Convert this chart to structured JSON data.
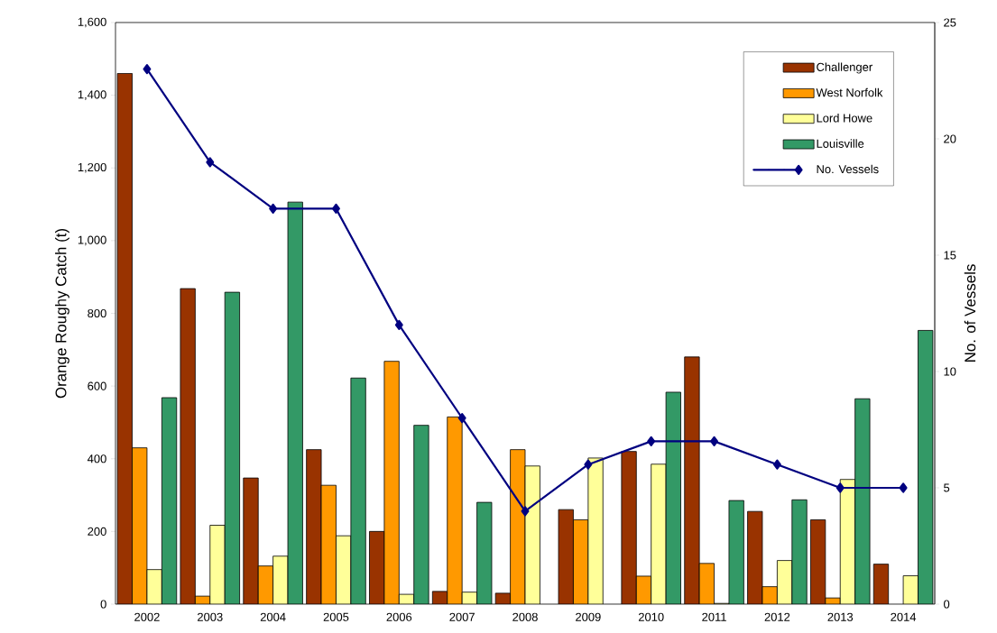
{
  "chart_data": {
    "type": "bar",
    "ylabel": "Orange Roughy Catch (t)",
    "y2label": "No. of Vessels",
    "categories": [
      "2002",
      "2003",
      "2004",
      "2005",
      "2006",
      "2007",
      "2008",
      "2009",
      "2010",
      "2011",
      "2012",
      "2013",
      "2014"
    ],
    "series": [
      {
        "name": "Challenger",
        "color": "#993300",
        "values": [
          1460,
          868,
          347,
          425,
          200,
          35,
          30,
          260,
          420,
          680,
          255,
          232,
          110
        ]
      },
      {
        "name": "West Norfolk",
        "color": "#ff9900",
        "values": [
          430,
          22,
          105,
          327,
          668,
          515,
          425,
          232,
          77,
          112,
          48,
          17,
          null
        ]
      },
      {
        "name": "Lord Howe",
        "color": "#ffff99",
        "values": [
          95,
          217,
          132,
          188,
          27,
          33,
          380,
          402,
          385,
          2,
          120,
          343,
          78
        ]
      },
      {
        "name": "Louisville",
        "color": "#339966",
        "values": [
          568,
          858,
          1106,
          622,
          492,
          280,
          null,
          null,
          583,
          285,
          287,
          565,
          753
        ]
      },
      {
        "name": "No. Vessels",
        "type": "line",
        "axis": "y2",
        "color": "#000080",
        "marker": "diamond",
        "line_style": "solid",
        "values": [
          23,
          19,
          17,
          17,
          12,
          8,
          4,
          6,
          7,
          7,
          6,
          5,
          5
        ]
      }
    ],
    "ylim": [
      0,
      1600
    ],
    "yticks": [
      {
        "value": 0,
        "label": "0"
      },
      {
        "value": 200,
        "label": "200"
      },
      {
        "value": 400,
        "label": "400"
      },
      {
        "value": 600,
        "label": "600"
      },
      {
        "value": 800,
        "label": "800"
      },
      {
        "value": 1000,
        "label": "1,000"
      },
      {
        "value": 1200,
        "label": "1,200"
      },
      {
        "value": 1400,
        "label": "1,400"
      },
      {
        "value": 1600,
        "label": "1,600"
      }
    ],
    "y2lim": [
      0,
      25
    ],
    "y2ticks": [
      0,
      5,
      10,
      15,
      20,
      25
    ],
    "legend": "top right"
  }
}
